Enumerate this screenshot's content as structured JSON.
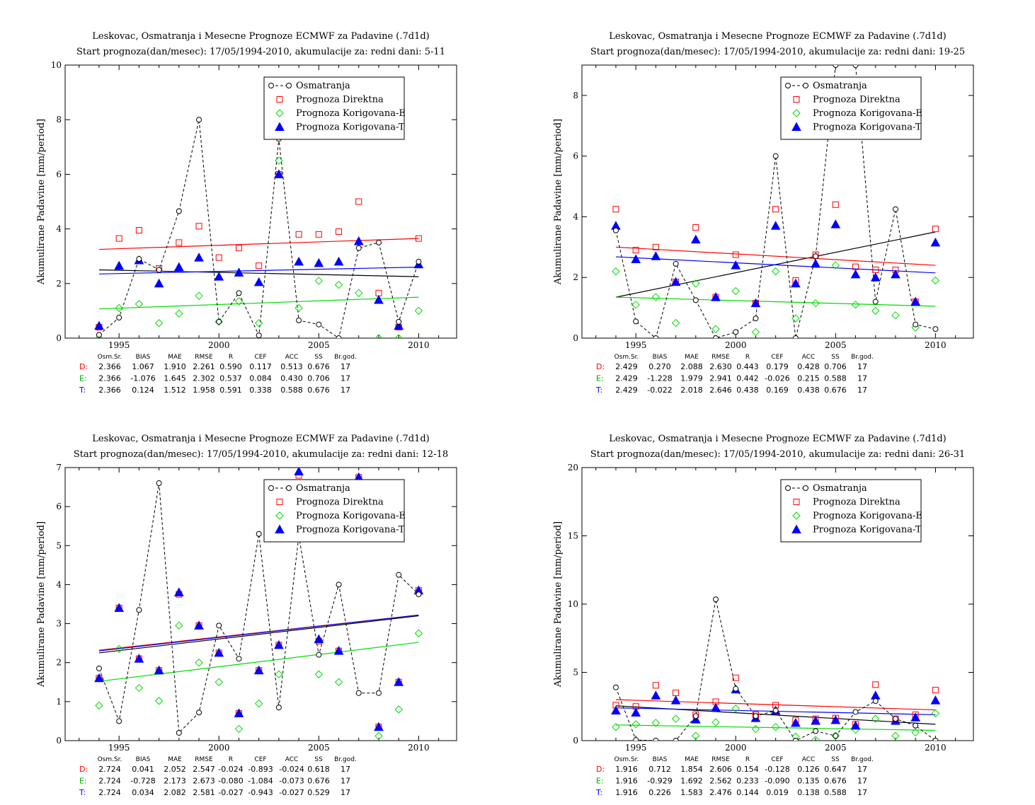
{
  "chart_data": [
    {
      "type": "line",
      "title": "Leskovac, Osmatranja i Mesecne Prognoze ECMWF za Padavine (.7d1d)",
      "subtitle": "Start prognoza(dan/mesec): 17/05/1994-2010, akumulacije za: redni dani: 5-11",
      "ylabel": "Akumulirane Padavine [mm/period]",
      "xlabel": "",
      "xlim": [
        1992.3,
        2011.9
      ],
      "ylim": [
        0,
        10
      ],
      "xticks": [
        1995,
        2000,
        2005,
        2010
      ],
      "yticks": [
        0,
        2,
        4,
        6,
        8,
        10
      ],
      "x": [
        1994,
        1995,
        1996,
        1997,
        1998,
        1999,
        2000,
        2001,
        2002,
        2003,
        2004,
        2005,
        2006,
        2007,
        2008,
        2009,
        2010
      ],
      "legend_position": "top-right",
      "series": [
        {
          "name": "Osmatranja",
          "values": [
            0.12,
            0.75,
            2.9,
            2.5,
            4.65,
            8.0,
            0.6,
            1.65,
            0.1,
            7.3,
            0.65,
            0.5,
            0.0,
            3.3,
            3.5,
            0.6,
            2.8
          ]
        },
        {
          "name": "Prognoza Direktna",
          "values": [
            0.4,
            3.65,
            3.95,
            2.55,
            3.5,
            4.1,
            2.95,
            3.3,
            2.65,
            6.0,
            3.8,
            3.8,
            3.9,
            5.0,
            1.65,
            0.4,
            3.65
          ]
        },
        {
          "name": "Prognoza Korigovana-E",
          "values": [
            0.0,
            1.1,
            1.25,
            0.55,
            0.9,
            1.55,
            0.6,
            1.35,
            0.55,
            6.5,
            1.1,
            2.1,
            1.95,
            1.65,
            0.0,
            0.0,
            1.0
          ]
        },
        {
          "name": "Prognoza Korigovana-T",
          "values": [
            0.45,
            2.65,
            2.85,
            2.0,
            2.6,
            2.95,
            2.25,
            2.4,
            2.05,
            6.0,
            2.8,
            2.75,
            2.8,
            3.55,
            1.4,
            0.45,
            2.7
          ]
        }
      ],
      "trends": [
        {
          "color": "#000000",
          "from": 2.5,
          "to": 2.25
        },
        {
          "color": "#ff0000",
          "from": 3.25,
          "to": 3.65
        },
        {
          "color": "#00dd00",
          "from": 1.07,
          "to": 1.5
        },
        {
          "color": "#0000ff",
          "from": 2.35,
          "to": 2.6
        }
      ],
      "stats": {
        "headers": [
          "Osm.Sr.",
          "BIAS",
          "MAE",
          "RMSE",
          "R",
          "CEF",
          "ACC",
          "SS",
          "Br.god."
        ],
        "rows": [
          {
            "label": "D:",
            "values": [
              "2.366",
              "1.067",
              "1.910",
              "2.261",
              "0.590",
              "0.117",
              "0.513",
              "0.676",
              "17"
            ]
          },
          {
            "label": "E:",
            "values": [
              "2.366",
              "-1.076",
              "1.645",
              "2.302",
              "0.537",
              "0.084",
              "0.430",
              "0.706",
              "17"
            ]
          },
          {
            "label": "T:",
            "values": [
              "2.366",
              "0.124",
              "1.512",
              "1.958",
              "0.591",
              "0.338",
              "0.588",
              "0.676",
              "17"
            ]
          }
        ]
      }
    },
    {
      "type": "line",
      "title": "Leskovac, Osmatranja i Mesecne Prognoze ECMWF za Padavine (.7d1d)",
      "subtitle": "Start prognoza(dan/mesec): 17/05/1994-2010, akumulacije za: redni dani: 19-25",
      "ylabel": "Akumulirane Padavine [mm/period]",
      "xlabel": "",
      "xlim": [
        1992.3,
        2011.9
      ],
      "ylim": [
        0,
        9
      ],
      "xticks": [
        1995,
        2000,
        2005,
        2010
      ],
      "yticks": [
        0,
        2,
        4,
        6,
        8
      ],
      "x": [
        1994,
        1995,
        1996,
        1997,
        1998,
        1999,
        2000,
        2001,
        2002,
        2003,
        2004,
        2005,
        2006,
        2007,
        2008,
        2009,
        2010
      ],
      "legend_position": "top-right",
      "series": [
        {
          "name": "Osmatranja",
          "values": [
            3.55,
            0.55,
            0.0,
            2.45,
            1.25,
            0.0,
            0.2,
            0.65,
            6.0,
            0.0,
            2.7,
            9.0,
            9.0,
            1.2,
            4.25,
            0.45,
            0.3
          ]
        },
        {
          "name": "Prognoza Direktna",
          "values": [
            4.25,
            2.9,
            3.0,
            1.85,
            3.65,
            1.35,
            2.75,
            1.15,
            4.25,
            1.9,
            2.75,
            4.4,
            2.35,
            2.25,
            2.25,
            1.2,
            3.6
          ]
        },
        {
          "name": "Prognoza Korigovana-E",
          "values": [
            2.2,
            1.1,
            1.35,
            0.5,
            1.8,
            0.3,
            1.55,
            0.2,
            2.2,
            0.65,
            1.15,
            2.4,
            1.1,
            0.9,
            0.75,
            0.35,
            1.9
          ]
        },
        {
          "name": "Prognoza Korigovana-T",
          "values": [
            3.7,
            2.6,
            2.7,
            1.85,
            3.25,
            1.35,
            2.4,
            1.15,
            3.7,
            1.8,
            2.45,
            3.75,
            2.1,
            2.0,
            2.1,
            1.2,
            3.15
          ]
        }
      ],
      "trends": [
        {
          "color": "#000000",
          "from": 1.35,
          "to": 3.5
        },
        {
          "color": "#ff0000",
          "from": 3.0,
          "to": 2.4
        },
        {
          "color": "#00dd00",
          "from": 1.35,
          "to": 1.05
        },
        {
          "color": "#0000ff",
          "from": 2.68,
          "to": 2.15
        }
      ],
      "stats": {
        "headers": [
          "Osm.Sr.",
          "BIAS",
          "MAE",
          "RMSE",
          "R",
          "CEF",
          "ACC",
          "SS",
          "Br.god."
        ],
        "rows": [
          {
            "label": "D:",
            "values": [
              "2.429",
              "0.270",
              "2.088",
              "2.630",
              "0.443",
              "0.179",
              "0.428",
              "0.706",
              "17"
            ]
          },
          {
            "label": "E:",
            "values": [
              "2.429",
              "-1.228",
              "1.979",
              "2.941",
              "0.442",
              "-0.026",
              "0.215",
              "0.588",
              "17"
            ]
          },
          {
            "label": "T:",
            "values": [
              "2.429",
              "-0.022",
              "2.018",
              "2.646",
              "0.438",
              "0.169",
              "0.438",
              "0.676",
              "17"
            ]
          }
        ]
      }
    },
    {
      "type": "line",
      "title": "Leskovac, Osmatranja i Mesecne Prognoze ECMWF za Padavine (.7d1d)",
      "subtitle": "Start prognoza(dan/mesec): 17/05/1994-2010, akumulacije za: redni dani: 12-18",
      "ylabel": "Akumulirane Padavine [mm/period]",
      "xlabel": "",
      "xlim": [
        1992.3,
        2011.9
      ],
      "ylim": [
        0,
        7
      ],
      "xticks": [
        1995,
        2000,
        2005,
        2010
      ],
      "yticks": [
        0,
        1,
        2,
        3,
        4,
        5,
        6,
        7
      ],
      "x": [
        1994,
        1995,
        1996,
        1997,
        1998,
        1999,
        2000,
        2001,
        2002,
        2003,
        2004,
        2005,
        2006,
        2007,
        2008,
        2009,
        2010
      ],
      "legend_position": "top-right",
      "series": [
        {
          "name": "Osmatranja",
          "values": [
            1.85,
            0.5,
            3.35,
            6.6,
            0.2,
            0.72,
            2.95,
            2.1,
            5.3,
            0.85,
            5.25,
            2.2,
            4.0,
            1.22,
            1.22,
            4.25,
            3.75
          ]
        },
        {
          "name": "Prognoza Direktna",
          "values": [
            1.6,
            3.4,
            2.1,
            1.8,
            3.75,
            2.95,
            2.25,
            0.7,
            1.8,
            2.45,
            6.8,
            2.55,
            2.3,
            6.75,
            0.35,
            1.5,
            3.85
          ]
        },
        {
          "name": "Prognoza Korigovana-E",
          "values": [
            0.9,
            2.35,
            1.35,
            1.02,
            2.95,
            2.0,
            1.5,
            0.3,
            0.95,
            1.7,
            5.4,
            1.7,
            1.5,
            5.4,
            0.12,
            0.8,
            2.75
          ]
        },
        {
          "name": "Prognoza Korigovana-T",
          "values": [
            1.6,
            3.4,
            2.1,
            1.8,
            3.8,
            2.95,
            2.25,
            0.7,
            1.8,
            2.45,
            6.9,
            2.6,
            2.3,
            6.75,
            0.35,
            1.5,
            3.85
          ]
        }
      ],
      "trends": [
        {
          "color": "#000000",
          "from": 2.25,
          "to": 3.2
        },
        {
          "color": "#ff0000",
          "from": 2.32,
          "to": 3.22
        },
        {
          "color": "#00dd00",
          "from": 1.52,
          "to": 2.52
        },
        {
          "color": "#0000ff",
          "from": 2.3,
          "to": 3.22
        }
      ],
      "stats": {
        "headers": [
          "Osm.Sr.",
          "BIAS",
          "MAE",
          "RMSE",
          "R",
          "CEF",
          "ACC",
          "SS",
          "Br.god."
        ],
        "rows": [
          {
            "label": "D:",
            "values": [
              "2.724",
              "0.041",
              "2.052",
              "2.547",
              "-0.024",
              "-0.893",
              "-0.024",
              "0.618",
              "17"
            ]
          },
          {
            "label": "E:",
            "values": [
              "2.724",
              "-0.728",
              "2.173",
              "2.673",
              "-0.080",
              "-1.084",
              "-0.073",
              "0.676",
              "17"
            ]
          },
          {
            "label": "T:",
            "values": [
              "2.724",
              "0.034",
              "2.082",
              "2.581",
              "-0.027",
              "-0.943",
              "-0.027",
              "0.529",
              "17"
            ]
          }
        ]
      }
    },
    {
      "type": "line",
      "title": "Leskovac, Osmatranja i Mesecne Prognoze ECMWF za Padavine (.7d1d)",
      "subtitle": "Start prognoza(dan/mesec): 17/05/1994-2010, akumulacije za: redni dani: 26-31",
      "ylabel": "Akumulirane Padavine [mm/period]",
      "xlabel": "",
      "xlim": [
        1992.3,
        2011.9
      ],
      "ylim": [
        0,
        20
      ],
      "xticks": [
        1995,
        2000,
        2005,
        2010
      ],
      "yticks": [
        0,
        5,
        10,
        15,
        20
      ],
      "x": [
        1994,
        1995,
        1996,
        1997,
        1998,
        1999,
        2000,
        2001,
        2002,
        2003,
        2004,
        2005,
        2006,
        2007,
        2008,
        2009,
        2010
      ],
      "legend_position": "top-right",
      "series": [
        {
          "name": "Osmatranja",
          "values": [
            3.9,
            0.05,
            0.0,
            0.0,
            1.8,
            10.35,
            3.8,
            1.8,
            2.2,
            0.0,
            0.7,
            0.35,
            2.1,
            2.9,
            1.6,
            1.1,
            0.0
          ]
        },
        {
          "name": "Prognoza Direktna",
          "values": [
            2.6,
            2.5,
            4.05,
            3.5,
            1.9,
            2.85,
            4.6,
            1.9,
            2.6,
            1.5,
            1.6,
            1.65,
            1.2,
            4.1,
            1.6,
            1.9,
            3.7
          ]
        },
        {
          "name": "Prognoza Korigovana-E",
          "values": [
            1.0,
            1.2,
            1.3,
            1.6,
            0.35,
            1.35,
            2.35,
            0.85,
            1.0,
            0.3,
            0.05,
            0.35,
            0.8,
            1.6,
            0.35,
            0.6,
            2.0
          ]
        },
        {
          "name": "Prognoza Korigovana-T",
          "values": [
            2.2,
            2.05,
            3.3,
            2.95,
            1.55,
            2.4,
            3.75,
            1.65,
            2.2,
            1.3,
            1.45,
            1.5,
            1.1,
            3.3,
            1.45,
            1.7,
            2.95
          ]
        }
      ],
      "trends": [
        {
          "color": "#000000",
          "from": 2.55,
          "to": 1.2
        },
        {
          "color": "#ff0000",
          "from": 3.0,
          "to": 2.25
        },
        {
          "color": "#00dd00",
          "from": 1.15,
          "to": 0.75
        },
        {
          "color": "#0000ff",
          "from": 2.4,
          "to": 1.9
        }
      ],
      "stats": {
        "headers": [
          "Osm.Sr.",
          "BIAS",
          "MAE",
          "RMSE",
          "R",
          "CEF",
          "ACC",
          "SS",
          "Br.god."
        ],
        "rows": [
          {
            "label": "D:",
            "values": [
              "1.916",
              "0.712",
              "1.854",
              "2.606",
              "0.154",
              "-0.128",
              "0.126",
              "0.647",
              "17"
            ]
          },
          {
            "label": "E:",
            "values": [
              "1.916",
              "-0.929",
              "1.692",
              "2.562",
              "0.233",
              "-0.090",
              "0.135",
              "0.676",
              "17"
            ]
          },
          {
            "label": "T:",
            "values": [
              "1.916",
              "0.226",
              "1.583",
              "2.476",
              "0.144",
              "0.019",
              "0.138",
              "0.588",
              "17"
            ]
          }
        ]
      }
    }
  ],
  "colors": {
    "obs": "#000000",
    "direct": "#ff0000",
    "korE": "#00dd00",
    "korT": "#0000ff",
    "statD": "#ff0000",
    "statE": "#00aa00",
    "statT": "#0000ff"
  }
}
